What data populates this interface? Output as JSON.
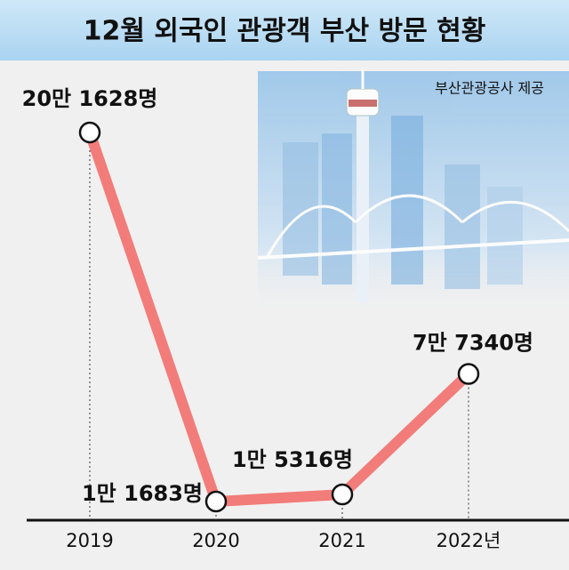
{
  "chart_data": {
    "type": "line",
    "title": "12월 외국인 관광객 부산 방문 현황",
    "source": "부산관광공사 제공",
    "categories": [
      "2019",
      "2020",
      "2021",
      "2022년"
    ],
    "values": [
      201628,
      11683,
      15316,
      77340
    ],
    "value_labels": [
      "20만 1628명",
      "1만 1683명",
      "1만 5316명",
      "7만 7340명"
    ],
    "color": "#f27c79"
  }
}
